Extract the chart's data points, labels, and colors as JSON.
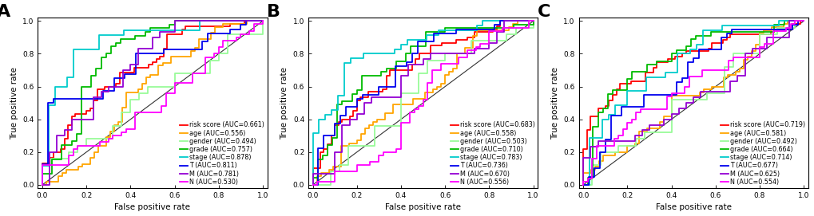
{
  "panels": [
    {
      "label": "A",
      "curves": [
        {
          "name": "risk score",
          "auc": 0.661,
          "color": "#FF0000",
          "seed": 101,
          "n": 60
        },
        {
          "name": "age",
          "auc": 0.556,
          "color": "#FFA500",
          "seed": 202,
          "n": 55
        },
        {
          "name": "gender",
          "auc": 0.494,
          "color": "#98FB98",
          "seed": 303,
          "n": 25
        },
        {
          "name": "grade",
          "auc": 0.757,
          "color": "#00BB00",
          "seed": 404,
          "n": 45
        },
        {
          "name": "stage",
          "auc": 0.878,
          "color": "#00CCCC",
          "seed": 505,
          "n": 35
        },
        {
          "name": "T",
          "auc": 0.811,
          "color": "#0000EE",
          "seed": 606,
          "n": 40
        },
        {
          "name": "M",
          "auc": 0.781,
          "color": "#9400D3",
          "seed": 707,
          "n": 30
        },
        {
          "name": "N",
          "auc": 0.53,
          "color": "#FF00FF",
          "seed": 808,
          "n": 50
        }
      ]
    },
    {
      "label": "B",
      "curves": [
        {
          "name": "risk score",
          "auc": 0.683,
          "color": "#FF0000",
          "seed": 111,
          "n": 60
        },
        {
          "name": "age",
          "auc": 0.558,
          "color": "#FFA500",
          "seed": 222,
          "n": 55
        },
        {
          "name": "gender",
          "auc": 0.503,
          "color": "#98FB98",
          "seed": 333,
          "n": 25
        },
        {
          "name": "grade",
          "auc": 0.71,
          "color": "#00BB00",
          "seed": 444,
          "n": 45
        },
        {
          "name": "stage",
          "auc": 0.783,
          "color": "#00CCCC",
          "seed": 555,
          "n": 35
        },
        {
          "name": "T",
          "auc": 0.736,
          "color": "#0000EE",
          "seed": 666,
          "n": 40
        },
        {
          "name": "M",
          "auc": 0.67,
          "color": "#9400D3",
          "seed": 777,
          "n": 30
        },
        {
          "name": "N",
          "auc": 0.556,
          "color": "#FF00FF",
          "seed": 888,
          "n": 50
        }
      ]
    },
    {
      "label": "C",
      "curves": [
        {
          "name": "risk score",
          "auc": 0.719,
          "color": "#FF0000",
          "seed": 121,
          "n": 60
        },
        {
          "name": "age",
          "auc": 0.581,
          "color": "#FFA500",
          "seed": 232,
          "n": 55
        },
        {
          "name": "gender",
          "auc": 0.492,
          "color": "#98FB98",
          "seed": 343,
          "n": 25
        },
        {
          "name": "grade",
          "auc": 0.664,
          "color": "#00BB00",
          "seed": 454,
          "n": 45
        },
        {
          "name": "stage",
          "auc": 0.714,
          "color": "#00CCCC",
          "seed": 565,
          "n": 35
        },
        {
          "name": "T",
          "auc": 0.677,
          "color": "#0000EE",
          "seed": 676,
          "n": 40
        },
        {
          "name": "M",
          "auc": 0.625,
          "color": "#9400D3",
          "seed": 787,
          "n": 30
        },
        {
          "name": "N",
          "auc": 0.554,
          "color": "#FF00FF",
          "seed": 898,
          "n": 50
        }
      ]
    }
  ],
  "xlabel": "False positive rate",
  "ylabel": "True positive rate",
  "bg_color": "#FFFFFF",
  "lw": 1.3,
  "diag_color": "#333333",
  "legend_fontsize": 5.8,
  "axis_label_fontsize": 7.5,
  "tick_fontsize": 6.5,
  "panel_label_fontsize": 16
}
